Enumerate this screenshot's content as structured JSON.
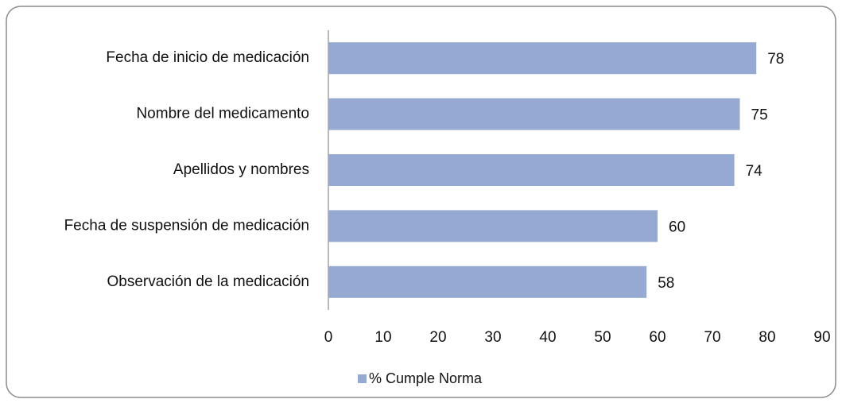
{
  "chart_data": {
    "type": "bar",
    "orientation": "horizontal",
    "categories": [
      "Fecha de inicio de medicación",
      "Nombre del medicamento",
      "Apellidos y nombres",
      "Fecha de suspensión de medicación",
      "Observación de la medicación"
    ],
    "series": [
      {
        "name": "% Cumple Norma",
        "color": "#95a9d2",
        "values": [
          78,
          75,
          74,
          60,
          58
        ]
      }
    ],
    "xlim": [
      0,
      90
    ],
    "xticks": [
      0,
      10,
      20,
      30,
      40,
      50,
      60,
      70,
      80,
      90
    ],
    "grid": false,
    "legend": "bottom"
  }
}
